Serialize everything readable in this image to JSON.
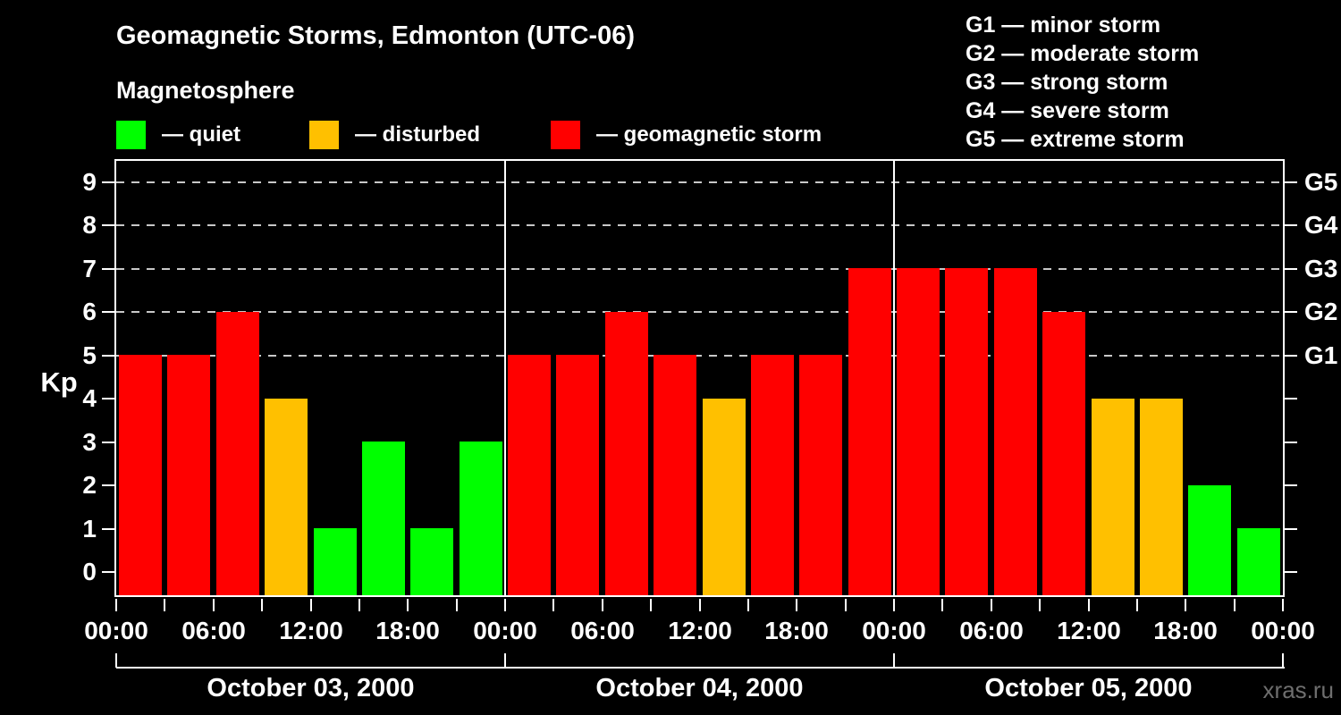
{
  "header": {
    "title": "Geomagnetic Storms, Edmonton (UTC-06)",
    "subtitle": "Magnetosphere"
  },
  "band_legend": {
    "items": [
      {
        "name": "quiet",
        "label": "— quiet",
        "color": "#00ff00"
      },
      {
        "name": "disturbed",
        "label": "— disturbed",
        "color": "#ffc000"
      },
      {
        "name": "storm",
        "label": "— geomagnetic storm",
        "color": "#ff0000"
      }
    ]
  },
  "gscale_legend": {
    "items": [
      {
        "label": "G1 — minor storm"
      },
      {
        "label": "G2 — moderate storm"
      },
      {
        "label": "G3 — strong storm"
      },
      {
        "label": "G4 — severe storm"
      },
      {
        "label": "G5 — extreme storm"
      }
    ]
  },
  "watermark": "xras.ru",
  "chart_data": {
    "type": "bar",
    "title": "Geomagnetic Storms, Edmonton (UTC-06)",
    "ylabel": "Kp",
    "ylim": [
      0,
      9
    ],
    "bar_interval_hours": 3,
    "grid": "dashed horizontal at storm levels only",
    "y_ticks": [
      0,
      1,
      2,
      3,
      4,
      5,
      6,
      7,
      8,
      9
    ],
    "gridlines_at_kp": [
      5,
      6,
      7,
      8,
      9
    ],
    "right_axis": {
      "labels": [
        "G1",
        "G2",
        "G3",
        "G4",
        "G5"
      ],
      "at_kp": [
        5,
        6,
        7,
        8,
        9
      ]
    },
    "x_tick_labels": [
      "00:00",
      "06:00",
      "12:00",
      "18:00",
      "00:00",
      "06:00",
      "12:00",
      "18:00",
      "00:00",
      "06:00",
      "12:00",
      "18:00",
      "00:00"
    ],
    "color_rule": {
      "quiet_max_kp": 3,
      "disturbed_kp": 4,
      "storm_min_kp": 5
    },
    "colors": {
      "quiet": "#00ff00",
      "disturbed": "#ffc000",
      "storm": "#ff0000"
    },
    "days": [
      {
        "date": "October 03, 2000",
        "kp": [
          5,
          5,
          6,
          4,
          1,
          3,
          1,
          3
        ],
        "states": [
          "storm",
          "storm",
          "storm",
          "disturbed",
          "quiet",
          "quiet",
          "quiet",
          "quiet"
        ]
      },
      {
        "date": "October 04, 2000",
        "kp": [
          5,
          5,
          6,
          5,
          4,
          5,
          5,
          7
        ],
        "states": [
          "storm",
          "storm",
          "storm",
          "storm",
          "disturbed",
          "storm",
          "storm",
          "storm"
        ]
      },
      {
        "date": "October 05, 2000",
        "kp": [
          7,
          7,
          7,
          6,
          4,
          4,
          2,
          1
        ],
        "states": [
          "storm",
          "storm",
          "storm",
          "storm",
          "disturbed",
          "disturbed",
          "quiet",
          "quiet"
        ]
      }
    ]
  }
}
